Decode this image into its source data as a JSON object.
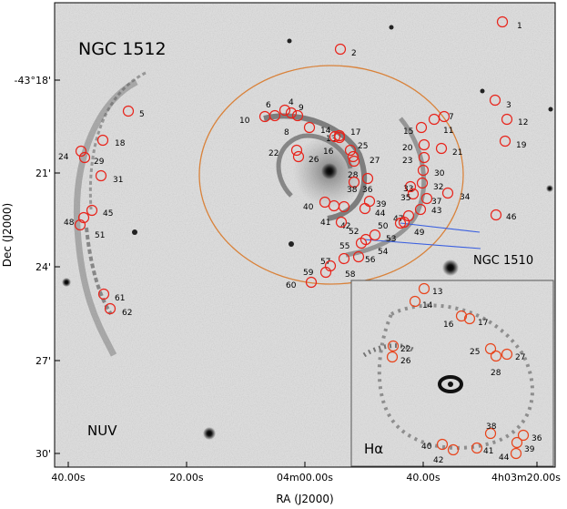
{
  "figure": {
    "main_title": "NGC 1512",
    "companion_label": "NGC 1510",
    "band_main": "NUV",
    "band_inset": "Hα",
    "x_axis_title": "RA (J2000)",
    "y_axis_title": "Dec (J2000)",
    "x_ticks": [
      "40.00s",
      "20.00s",
      "04m00.00s",
      "40.00s",
      "4h03m20.00s"
    ],
    "y_ticks": [
      "-43°18'",
      "21'",
      "24'",
      "27'",
      "30'"
    ]
  },
  "colors": {
    "source_circle": "#e8231a",
    "ellipse": "#d9823a",
    "line": "#3a5fe0",
    "inset_circle": "#e8431a"
  },
  "main_sources": [
    {
      "id": "1"
    },
    {
      "id": "2"
    },
    {
      "id": "3"
    },
    {
      "id": "4"
    },
    {
      "id": "5"
    },
    {
      "id": "6"
    },
    {
      "id": "7"
    },
    {
      "id": "8"
    },
    {
      "id": "9"
    },
    {
      "id": "10"
    },
    {
      "id": "11"
    },
    {
      "id": "12"
    },
    {
      "id": "13"
    },
    {
      "id": "14"
    },
    {
      "id": "15"
    },
    {
      "id": "16"
    },
    {
      "id": "17"
    },
    {
      "id": "18"
    },
    {
      "id": "19"
    },
    {
      "id": "20"
    },
    {
      "id": "21"
    },
    {
      "id": "22"
    },
    {
      "id": "23"
    },
    {
      "id": "24"
    },
    {
      "id": "25"
    },
    {
      "id": "26"
    },
    {
      "id": "27"
    },
    {
      "id": "28"
    },
    {
      "id": "29"
    },
    {
      "id": "30"
    },
    {
      "id": "31"
    },
    {
      "id": "32"
    },
    {
      "id": "33"
    },
    {
      "id": "34"
    },
    {
      "id": "35"
    },
    {
      "id": "36"
    },
    {
      "id": "37"
    },
    {
      "id": "38"
    },
    {
      "id": "39"
    },
    {
      "id": "40"
    },
    {
      "id": "41"
    },
    {
      "id": "42"
    },
    {
      "id": "43"
    },
    {
      "id": "44"
    },
    {
      "id": "45"
    },
    {
      "id": "46"
    },
    {
      "id": "47"
    },
    {
      "id": "48"
    },
    {
      "id": "49"
    },
    {
      "id": "50"
    },
    {
      "id": "51"
    },
    {
      "id": "52"
    },
    {
      "id": "53"
    },
    {
      "id": "54"
    },
    {
      "id": "55"
    },
    {
      "id": "56"
    },
    {
      "id": "57"
    },
    {
      "id": "58"
    },
    {
      "id": "59"
    },
    {
      "id": "60"
    },
    {
      "id": "61"
    },
    {
      "id": "62"
    }
  ],
  "inset_sources": [
    {
      "id": "13"
    },
    {
      "id": "14"
    },
    {
      "id": "16"
    },
    {
      "id": "17"
    },
    {
      "id": "22"
    },
    {
      "id": "25"
    },
    {
      "id": "26"
    },
    {
      "id": "27"
    },
    {
      "id": "28"
    },
    {
      "id": "36"
    },
    {
      "id": "38"
    },
    {
      "id": "39"
    },
    {
      "id": "40"
    },
    {
      "id": "41"
    },
    {
      "id": "42"
    },
    {
      "id": "44"
    }
  ]
}
